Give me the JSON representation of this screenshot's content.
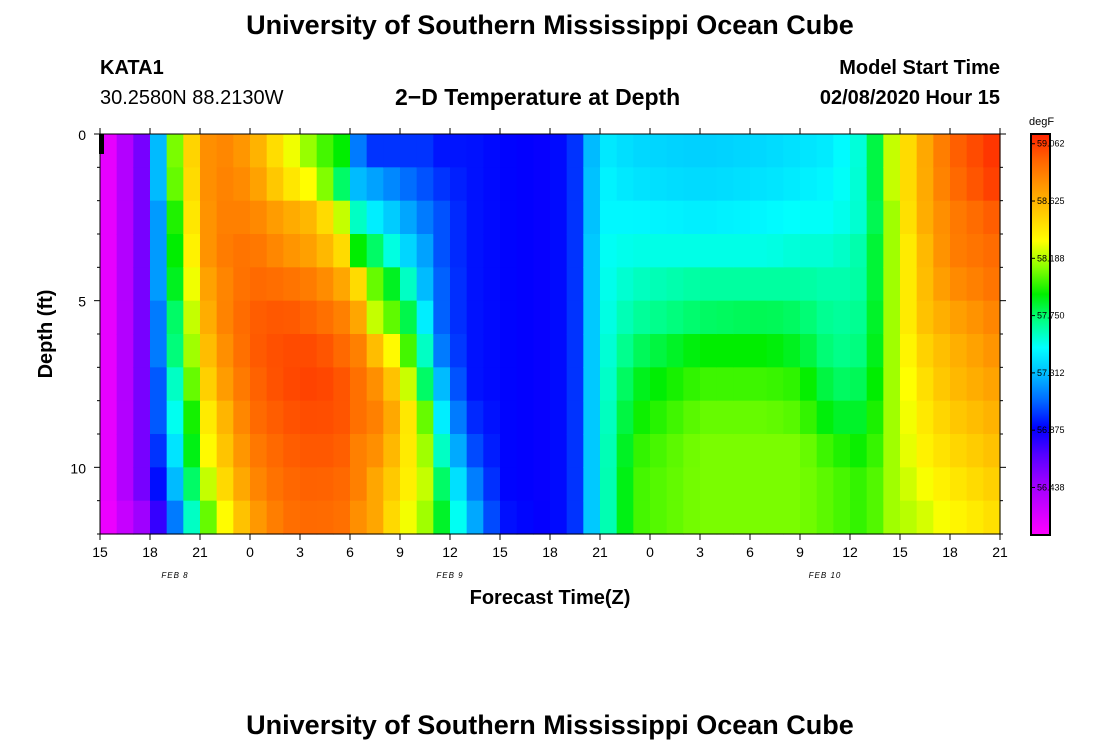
{
  "header": {
    "title": "University of Southern Mississippi Ocean Cube",
    "station": "KATA1",
    "coords": "30.2580N 88.2130W",
    "plot_title": "2−D Temperature at Depth",
    "model_label": "Model Start Time",
    "model_time": "02/08/2020 Hour 15"
  },
  "footer": {
    "title": "University of Southern Mississippi Ocean Cube"
  },
  "chart_data": {
    "type": "heatmap",
    "title": "2−D Temperature at Depth",
    "xlabel": "Forecast Time(Z)",
    "ylabel": "Depth (ft)",
    "x_ticks": [
      "15",
      "18",
      "21",
      "0",
      "3",
      "6",
      "9",
      "12",
      "15",
      "18",
      "21",
      "0",
      "3",
      "6",
      "9",
      "12",
      "15",
      "18",
      "21"
    ],
    "date_labels": [
      {
        "label": "FEB 8",
        "tick_index": 1.5
      },
      {
        "label": "FEB 9",
        "tick_index": 7
      },
      {
        "label": "FEB 10",
        "tick_index": 14.5
      }
    ],
    "y_ticks": [
      0,
      5,
      10
    ],
    "ylim": [
      0,
      12
    ],
    "xlim_hours_from_start": [
      0,
      54
    ],
    "colorbar": {
      "unit": "degF",
      "ticks": [
        "59.062",
        "58.625",
        "58.188",
        "57.750",
        "57.312",
        "56.875",
        "56.438"
      ],
      "colors": [
        "#ff00ff",
        "#cc00ff",
        "#9900ff",
        "#5500ff",
        "#0000ff",
        "#0066ff",
        "#00bbff",
        "#00ffff",
        "#00ff88",
        "#00ee00",
        "#88ff00",
        "#ffff00",
        "#ffcc00",
        "#ff9900",
        "#ff6600",
        "#ff2200"
      ]
    },
    "grid": false,
    "columns": [
      {
        "t": 0,
        "vals": [
          0.0,
          0.0,
          0.0,
          0.0,
          0.0,
          0.0,
          0.0,
          0.0,
          0.0,
          0.0,
          0.0,
          0.0
        ]
      },
      {
        "t": 3,
        "vals": [
          0.2,
          0.2,
          0.2,
          0.2,
          0.2,
          0.2,
          0.2,
          0.2,
          0.2,
          0.2,
          0.2,
          0.15
        ]
      },
      {
        "t": 4,
        "vals": [
          0.6,
          0.6,
          0.55,
          0.55,
          0.55,
          0.5,
          0.5,
          0.45,
          0.45,
          0.4,
          0.35,
          0.3
        ]
      },
      {
        "t": 5,
        "vals": [
          0.72,
          0.7,
          0.68,
          0.65,
          0.62,
          0.6,
          0.58,
          0.55,
          0.5,
          0.48,
          0.45,
          0.4
        ]
      },
      {
        "t": 6,
        "vals": [
          0.86,
          0.86,
          0.85,
          0.85,
          0.83,
          0.8,
          0.78,
          0.75,
          0.72,
          0.7,
          0.65,
          0.6
        ]
      },
      {
        "t": 7,
        "vals": [
          0.9,
          0.9,
          0.9,
          0.9,
          0.88,
          0.88,
          0.86,
          0.84,
          0.8,
          0.78,
          0.75,
          0.7
        ]
      },
      {
        "t": 9,
        "vals": [
          0.86,
          0.88,
          0.9,
          0.92,
          0.93,
          0.94,
          0.94,
          0.93,
          0.92,
          0.9,
          0.88,
          0.85
        ]
      },
      {
        "t": 11,
        "vals": [
          0.75,
          0.78,
          0.85,
          0.88,
          0.92,
          0.95,
          0.96,
          0.96,
          0.95,
          0.94,
          0.93,
          0.92
        ]
      },
      {
        "t": 13,
        "vals": [
          0.65,
          0.72,
          0.82,
          0.85,
          0.9,
          0.93,
          0.96,
          0.97,
          0.96,
          0.95,
          0.94,
          0.93
        ]
      },
      {
        "t": 14.5,
        "vals": [
          0.6,
          0.55,
          0.7,
          0.78,
          0.85,
          0.9,
          0.93,
          0.95,
          0.95,
          0.94,
          0.93,
          0.92
        ]
      },
      {
        "t": 15.5,
        "vals": [
          0.35,
          0.4,
          0.5,
          0.6,
          0.78,
          0.85,
          0.9,
          0.92,
          0.92,
          0.9,
          0.9,
          0.88
        ]
      },
      {
        "t": 16.5,
        "vals": [
          0.3,
          0.38,
          0.45,
          0.55,
          0.65,
          0.7,
          0.82,
          0.88,
          0.9,
          0.88,
          0.85,
          0.85
        ]
      },
      {
        "t": 18,
        "vals": [
          0.3,
          0.35,
          0.4,
          0.45,
          0.55,
          0.62,
          0.7,
          0.78,
          0.82,
          0.8,
          0.78,
          0.75
        ]
      },
      {
        "t": 19.5,
        "vals": [
          0.3,
          0.32,
          0.35,
          0.38,
          0.4,
          0.45,
          0.5,
          0.55,
          0.65,
          0.68,
          0.7,
          0.68
        ]
      },
      {
        "t": 20.5,
        "vals": [
          0.28,
          0.3,
          0.32,
          0.32,
          0.33,
          0.33,
          0.35,
          0.4,
          0.45,
          0.5,
          0.55,
          0.58
        ]
      },
      {
        "t": 22,
        "vals": [
          0.28,
          0.28,
          0.28,
          0.28,
          0.28,
          0.28,
          0.28,
          0.28,
          0.3,
          0.33,
          0.38,
          0.42
        ]
      },
      {
        "t": 24,
        "vals": [
          0.27,
          0.27,
          0.27,
          0.27,
          0.27,
          0.27,
          0.27,
          0.27,
          0.27,
          0.27,
          0.27,
          0.28
        ]
      },
      {
        "t": 27,
        "vals": [
          0.26,
          0.26,
          0.26,
          0.26,
          0.26,
          0.26,
          0.26,
          0.26,
          0.26,
          0.26,
          0.26,
          0.26
        ]
      },
      {
        "t": 28.5,
        "vals": [
          0.3,
          0.3,
          0.3,
          0.3,
          0.3,
          0.3,
          0.3,
          0.3,
          0.3,
          0.3,
          0.3,
          0.3
        ]
      },
      {
        "t": 30,
        "vals": [
          0.45,
          0.46,
          0.46,
          0.47,
          0.47,
          0.47,
          0.47,
          0.47,
          0.47,
          0.47,
          0.47,
          0.47
        ]
      },
      {
        "t": 32,
        "vals": [
          0.43,
          0.44,
          0.46,
          0.48,
          0.5,
          0.52,
          0.55,
          0.58,
          0.6,
          0.62,
          0.63,
          0.63
        ]
      },
      {
        "t": 36,
        "vals": [
          0.42,
          0.43,
          0.45,
          0.48,
          0.52,
          0.55,
          0.6,
          0.63,
          0.65,
          0.66,
          0.66,
          0.66
        ]
      },
      {
        "t": 40,
        "vals": [
          0.43,
          0.44,
          0.46,
          0.48,
          0.52,
          0.56,
          0.6,
          0.63,
          0.65,
          0.66,
          0.66,
          0.66
        ]
      },
      {
        "t": 42,
        "vals": [
          0.44,
          0.45,
          0.47,
          0.49,
          0.52,
          0.55,
          0.58,
          0.62,
          0.64,
          0.66,
          0.66,
          0.66
        ]
      },
      {
        "t": 44,
        "vals": [
          0.45,
          0.46,
          0.47,
          0.49,
          0.51,
          0.52,
          0.53,
          0.55,
          0.58,
          0.62,
          0.64,
          0.64
        ]
      },
      {
        "t": 46,
        "vals": [
          0.5,
          0.5,
          0.5,
          0.52,
          0.52,
          0.53,
          0.54,
          0.56,
          0.58,
          0.6,
          0.62,
          0.62
        ]
      },
      {
        "t": 47.5,
        "vals": [
          0.7,
          0.7,
          0.68,
          0.68,
          0.68,
          0.68,
          0.68,
          0.68,
          0.68,
          0.68,
          0.68,
          0.68
        ]
      },
      {
        "t": 49,
        "vals": [
          0.82,
          0.82,
          0.82,
          0.8,
          0.8,
          0.8,
          0.78,
          0.76,
          0.75,
          0.74,
          0.72,
          0.7
        ]
      },
      {
        "t": 51,
        "vals": [
          0.93,
          0.92,
          0.9,
          0.9,
          0.88,
          0.85,
          0.83,
          0.82,
          0.8,
          0.78,
          0.76,
          0.74
        ]
      },
      {
        "t": 54,
        "vals": [
          0.99,
          0.98,
          0.95,
          0.93,
          0.92,
          0.9,
          0.88,
          0.86,
          0.84,
          0.82,
          0.8,
          0.78
        ]
      }
    ]
  }
}
